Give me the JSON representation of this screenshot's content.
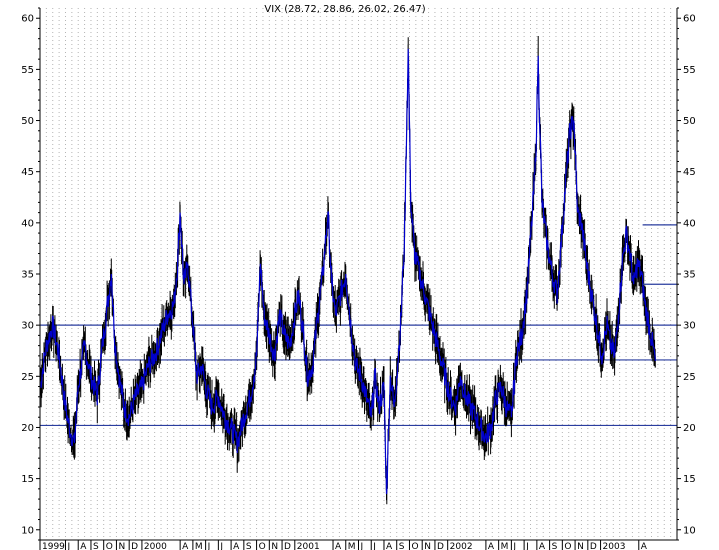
{
  "chart_data": {
    "type": "line",
    "title": "VIX (28.72, 28.86, 26.02, 26.47)",
    "xlabel": "",
    "ylabel": "",
    "ylim": [
      9,
      61
    ],
    "yticks": [
      10,
      15,
      20,
      25,
      30,
      35,
      40,
      45,
      50,
      55,
      60
    ],
    "grid": true,
    "legend": "none",
    "bar_color": "#000000",
    "line_color": "#0000cc",
    "reference_color": "#2a3d9f",
    "horizontal_lines": [
      20.2,
      26.6,
      30.0
    ],
    "resistance_segments": [
      {
        "from_t": 47.3,
        "to_t": 50.0,
        "value": 39.8
      },
      {
        "from_t": 47.3,
        "to_t": 50.0,
        "value": 34.0
      }
    ],
    "month_axis": [
      {
        "label": "1999",
        "t": 0.0
      },
      {
        "label": "J",
        "t": 2.0
      },
      {
        "label": "A",
        "t": 3.0
      },
      {
        "label": "S",
        "t": 4.0
      },
      {
        "label": "O",
        "t": 5.0
      },
      {
        "label": "N",
        "t": 6.0
      },
      {
        "label": "D",
        "t": 7.0
      },
      {
        "label": "2000",
        "t": 8.0
      },
      {
        "label": "A",
        "t": 11.0
      },
      {
        "label": "M",
        "t": 12.0
      },
      {
        "label": "J",
        "t": 13.0
      },
      {
        "label": "J",
        "t": 14.0
      },
      {
        "label": "A",
        "t": 15.0
      },
      {
        "label": "S",
        "t": 16.0
      },
      {
        "label": "O",
        "t": 17.0
      },
      {
        "label": "N",
        "t": 18.0
      },
      {
        "label": "D",
        "t": 19.0
      },
      {
        "label": "2001",
        "t": 20.0
      },
      {
        "label": "A",
        "t": 23.0
      },
      {
        "label": "M",
        "t": 24.0
      },
      {
        "label": "J",
        "t": 25.0
      },
      {
        "label": "J",
        "t": 26.0
      },
      {
        "label": "A",
        "t": 27.0
      },
      {
        "label": "S",
        "t": 28.0
      },
      {
        "label": "O",
        "t": 29.0
      },
      {
        "label": "N",
        "t": 30.0
      },
      {
        "label": "D",
        "t": 31.0
      },
      {
        "label": "2002",
        "t": 32.0
      },
      {
        "label": "A",
        "t": 35.0
      },
      {
        "label": "M",
        "t": 36.0
      },
      {
        "label": "J",
        "t": 37.0
      },
      {
        "label": "J",
        "t": 38.0
      },
      {
        "label": "A",
        "t": 39.0
      },
      {
        "label": "S",
        "t": 40.0
      },
      {
        "label": "O",
        "t": 41.0
      },
      {
        "label": "N",
        "t": 42.0
      },
      {
        "label": "D",
        "t": 43.0
      },
      {
        "label": "2003",
        "t": 44.0
      },
      {
        "label": "A",
        "t": 47.0
      }
    ],
    "series": [
      {
        "values": [
          [
            0.0,
            24
          ],
          [
            0.5,
            28
          ],
          [
            1.0,
            30
          ],
          [
            1.5,
            27
          ],
          [
            2.0,
            22
          ],
          [
            2.3,
            20
          ],
          [
            2.7,
            18.5
          ],
          [
            3.0,
            24
          ],
          [
            3.5,
            28
          ],
          [
            4.0,
            25
          ],
          [
            4.5,
            23
          ],
          [
            4.8,
            27
          ],
          [
            5.2,
            31
          ],
          [
            5.6,
            35
          ],
          [
            5.9,
            28
          ],
          [
            6.2,
            25
          ],
          [
            6.6,
            22
          ],
          [
            7.0,
            21
          ],
          [
            7.5,
            23
          ],
          [
            8.0,
            24
          ],
          [
            8.5,
            26
          ],
          [
            9.0,
            27
          ],
          [
            9.5,
            29
          ],
          [
            10.0,
            31
          ],
          [
            10.5,
            32
          ],
          [
            10.8,
            36
          ],
          [
            11.0,
            41
          ],
          [
            11.3,
            34
          ],
          [
            11.6,
            36
          ],
          [
            12.0,
            30
          ],
          [
            12.3,
            25
          ],
          [
            12.7,
            26
          ],
          [
            13.0,
            24
          ],
          [
            13.5,
            22
          ],
          [
            14.0,
            23
          ],
          [
            14.5,
            21
          ],
          [
            15.0,
            20
          ],
          [
            15.5,
            18.5
          ],
          [
            16.0,
            21
          ],
          [
            16.5,
            23
          ],
          [
            16.8,
            25
          ],
          [
            17.0,
            27
          ],
          [
            17.3,
            36
          ],
          [
            17.6,
            31
          ],
          [
            18.0,
            29
          ],
          [
            18.4,
            27
          ],
          [
            18.8,
            31
          ],
          [
            19.2,
            29
          ],
          [
            19.6,
            28
          ],
          [
            20.0,
            31
          ],
          [
            20.3,
            33
          ],
          [
            20.7,
            29
          ],
          [
            21.0,
            25
          ],
          [
            21.4,
            26
          ],
          [
            21.8,
            31
          ],
          [
            22.2,
            35
          ],
          [
            22.6,
            41
          ],
          [
            22.9,
            34
          ],
          [
            23.2,
            31
          ],
          [
            23.6,
            33
          ],
          [
            24.0,
            35
          ],
          [
            24.4,
            30
          ],
          [
            24.8,
            26
          ],
          [
            25.2,
            25
          ],
          [
            25.6,
            23
          ],
          [
            26.0,
            21
          ],
          [
            26.3,
            25
          ],
          [
            26.6,
            22
          ],
          [
            27.0,
            24
          ],
          [
            27.2,
            13.5
          ],
          [
            27.5,
            25
          ],
          [
            27.8,
            22
          ],
          [
            28.0,
            25
          ],
          [
            28.3,
            30
          ],
          [
            28.6,
            38
          ],
          [
            28.9,
            57
          ],
          [
            29.1,
            42
          ],
          [
            29.4,
            37
          ],
          [
            29.8,
            35
          ],
          [
            30.2,
            33
          ],
          [
            30.6,
            31
          ],
          [
            31.0,
            29
          ],
          [
            31.4,
            27
          ],
          [
            31.8,
            25
          ],
          [
            32.2,
            23
          ],
          [
            32.6,
            22
          ],
          [
            33.0,
            25
          ],
          [
            33.4,
            23
          ],
          [
            33.8,
            22
          ],
          [
            34.2,
            21
          ],
          [
            34.6,
            20
          ],
          [
            35.0,
            19
          ],
          [
            35.4,
            20
          ],
          [
            35.8,
            23
          ],
          [
            36.2,
            24
          ],
          [
            36.6,
            22
          ],
          [
            37.0,
            21
          ],
          [
            37.4,
            27
          ],
          [
            37.8,
            29
          ],
          [
            38.2,
            33
          ],
          [
            38.6,
            40
          ],
          [
            38.9,
            46
          ],
          [
            39.1,
            56
          ],
          [
            39.4,
            42
          ],
          [
            39.8,
            38
          ],
          [
            40.2,
            35
          ],
          [
            40.6,
            33
          ],
          [
            40.9,
            38
          ],
          [
            41.2,
            43
          ],
          [
            41.6,
            49
          ],
          [
            41.9,
            50
          ],
          [
            42.2,
            41
          ],
          [
            42.5,
            40
          ],
          [
            42.9,
            36
          ],
          [
            43.3,
            33
          ],
          [
            43.7,
            30
          ],
          [
            44.1,
            27
          ],
          [
            44.5,
            30
          ],
          [
            44.8,
            28
          ],
          [
            45.1,
            27
          ],
          [
            45.4,
            31
          ],
          [
            45.7,
            36
          ],
          [
            46.0,
            39
          ],
          [
            46.3,
            37
          ],
          [
            46.6,
            34
          ],
          [
            46.9,
            36
          ],
          [
            47.2,
            35
          ],
          [
            47.5,
            32
          ],
          [
            47.8,
            30
          ],
          [
            48.1,
            28
          ],
          [
            48.3,
            26.5
          ]
        ]
      }
    ]
  }
}
